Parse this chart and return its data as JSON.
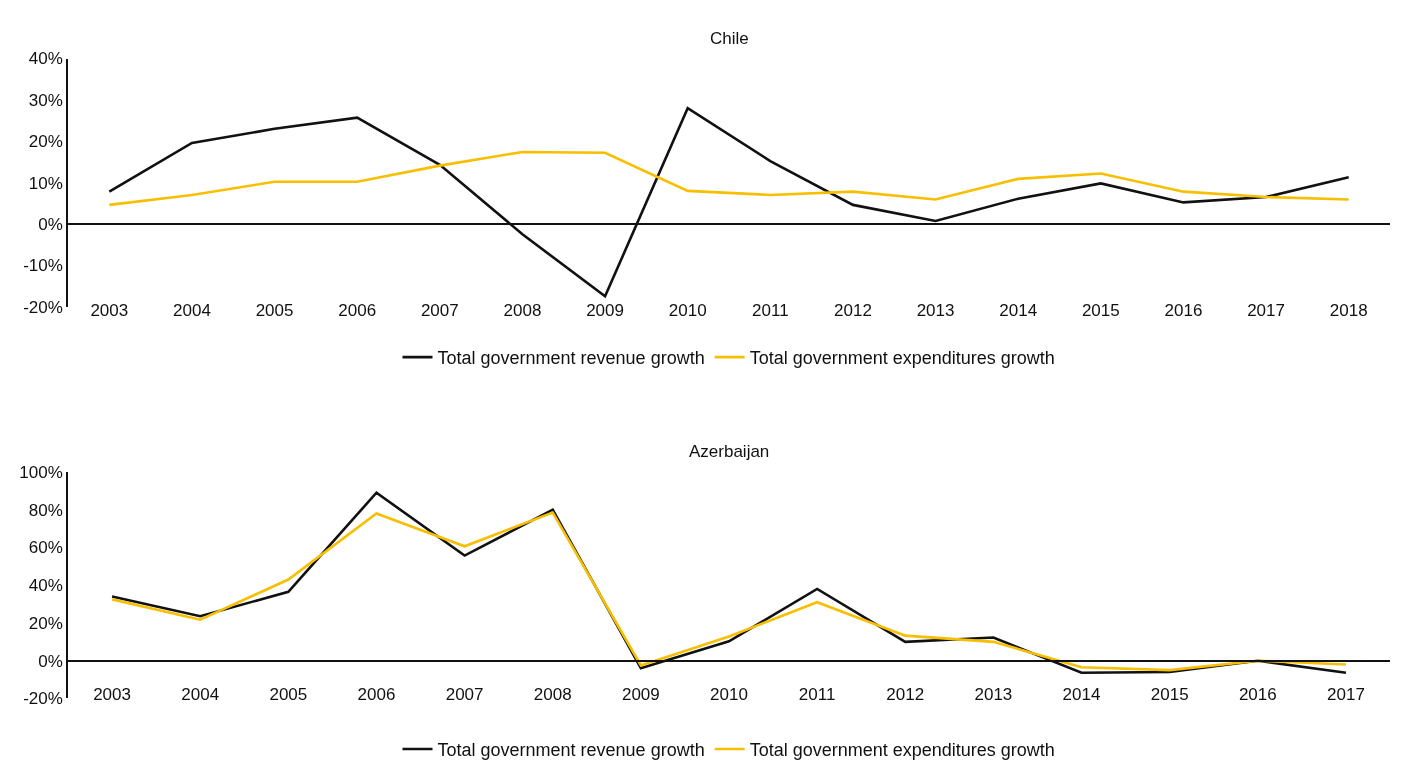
{
  "chart_data": [
    {
      "type": "line",
      "title": "Chile",
      "categories": [
        "2003",
        "2004",
        "2005",
        "2006",
        "2007",
        "2008",
        "2009",
        "2010",
        "2011",
        "2012",
        "2013",
        "2014",
        "2015",
        "2016",
        "2017",
        "2018"
      ],
      "series": [
        {
          "name": "Total government revenue growth",
          "color": "#111111",
          "values": [
            7.8,
            19.6,
            23,
            25.7,
            14.3,
            -2.5,
            -17.5,
            28,
            15.2,
            4.6,
            0.7,
            6.1,
            9.8,
            5.2,
            6.5,
            11.3
          ]
        },
        {
          "name": "Total government expenditures growth",
          "color": "#f7bf00",
          "values": [
            4.6,
            7,
            10.2,
            10.2,
            14.1,
            17.4,
            17.2,
            8,
            7,
            7.8,
            5.9,
            10.9,
            12.2,
            7.8,
            6.5,
            5.9
          ]
        }
      ],
      "ylim": [
        -20,
        40
      ],
      "yticks": [
        {
          "value": -20,
          "label": "-20%"
        },
        {
          "value": -10,
          "label": "-10%"
        },
        {
          "value": 0,
          "label": "0%"
        },
        {
          "value": 10,
          "label": "10%"
        },
        {
          "value": 20,
          "label": "20%"
        },
        {
          "value": 30,
          "label": "30%"
        },
        {
          "value": 40,
          "label": "40%"
        }
      ],
      "legend": "bottom",
      "marker": "none",
      "line_style": "solid"
    },
    {
      "type": "line",
      "title": "Azerbaijan",
      "categories": [
        "2003",
        "2004",
        "2005",
        "2006",
        "2007",
        "2008",
        "2009",
        "2010",
        "2011",
        "2012",
        "2013",
        "2014",
        "2015",
        "2016",
        "2017"
      ],
      "series": [
        {
          "name": "Total government revenue growth",
          "color": "#111111",
          "values": [
            34,
            23.6,
            36.5,
            89,
            55.7,
            80,
            -4,
            10.3,
            38,
            10,
            12.3,
            -6.4,
            -6,
            0,
            -6.4
          ]
        },
        {
          "name": "Total government expenditures growth",
          "color": "#f7bf00",
          "values": [
            32.5,
            21.7,
            43,
            78,
            60.6,
            78.5,
            -2.5,
            12.8,
            31,
            13.3,
            10,
            -3.5,
            -5,
            0,
            -2
          ]
        }
      ],
      "ylim": [
        -20,
        100
      ],
      "yticks": [
        {
          "value": -20,
          "label": "-20%"
        },
        {
          "value": 0,
          "label": "0%"
        },
        {
          "value": 20,
          "label": "20%"
        },
        {
          "value": 40,
          "label": "40%"
        },
        {
          "value": 60,
          "label": "60%"
        },
        {
          "value": 80,
          "label": "80%"
        },
        {
          "value": 100,
          "label": "100%"
        }
      ],
      "legend": "bottom",
      "marker": "none",
      "line_style": "solid"
    }
  ]
}
